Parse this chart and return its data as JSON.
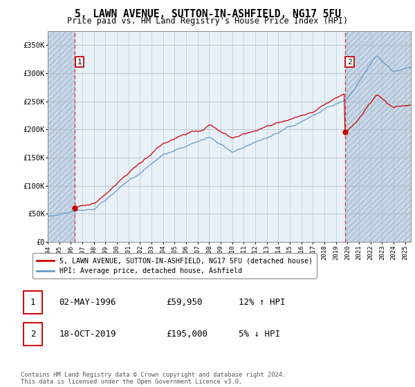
{
  "title": "5, LAWN AVENUE, SUTTON-IN-ASHFIELD, NG17 5FU",
  "subtitle": "Price paid vs. HM Land Registry's House Price Index (HPI)",
  "ylabel_ticks": [
    "£0",
    "£50K",
    "£100K",
    "£150K",
    "£200K",
    "£250K",
    "£300K",
    "£350K"
  ],
  "ytick_vals": [
    0,
    50000,
    100000,
    150000,
    200000,
    250000,
    300000,
    350000
  ],
  "ylim": [
    0,
    375000
  ],
  "xlim_start": 1994.0,
  "xlim_end": 2025.5,
  "sale1_year": 1996,
  "sale1_month": 5,
  "sale1_date": 1996.34,
  "sale1_price": 59950,
  "sale2_year": 2019,
  "sale2_month": 10,
  "sale2_date": 2019.79,
  "sale2_price": 195000,
  "legend_entry1": "5, LAWN AVENUE, SUTTON-IN-ASHFIELD, NG17 5FU (detached house)",
  "legend_entry2": "HPI: Average price, detached house, Ashfield",
  "table_row1": [
    "1",
    "02-MAY-1996",
    "£59,950",
    "12% ↑ HPI"
  ],
  "table_row2": [
    "2",
    "18-OCT-2019",
    "£195,000",
    "5% ↓ HPI"
  ],
  "footnote": "Contains HM Land Registry data © Crown copyright and database right 2024.\nThis data is licensed under the Open Government Licence v3.0.",
  "line_color_red": "#cc0000",
  "line_color_blue": "#6699cc",
  "plot_bg": "#e8f0f8",
  "hatch_color": "#c8d8e8"
}
